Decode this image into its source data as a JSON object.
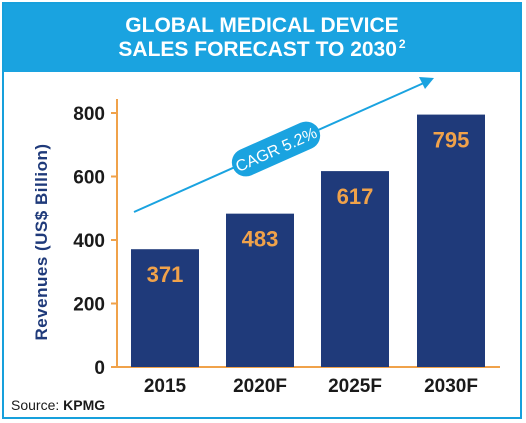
{
  "header": {
    "title_line1": "GLOBAL MEDICAL DEVICE",
    "title_line2": "SALES FORECAST TO 2030",
    "title_superscript": "2"
  },
  "source": {
    "label": "Source:",
    "value": "KPMG"
  },
  "colors": {
    "banner": "#1aa3e0",
    "bar": "#1f3a7a",
    "value_label": "#f0a24a",
    "axis": "#f0a24a",
    "trend": "#1aa3e0",
    "ylabel": "#1f3a7a"
  },
  "chart_data": {
    "type": "bar",
    "title": "GLOBAL MEDICAL DEVICE SALES FORECAST TO 2030",
    "categories": [
      "2015",
      "2020F",
      "2025F",
      "2030F"
    ],
    "values": [
      371,
      483,
      617,
      795
    ],
    "value_labels": [
      "371",
      "483",
      "617",
      "795"
    ],
    "ylabel": "Revenues (US$ Billion)",
    "xlabel": "",
    "ylim": [
      0,
      800
    ],
    "yticks": [
      0,
      200,
      400,
      600,
      800
    ],
    "grid": false,
    "annotation": "CAGR 5.2%"
  }
}
